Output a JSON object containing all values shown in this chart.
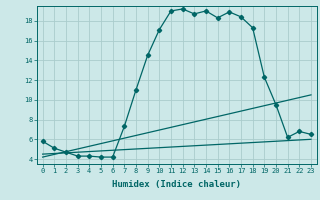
{
  "xlabel": "Humidex (Indice chaleur)",
  "bg_color": "#cce8e8",
  "grid_color": "#aacccc",
  "line_color": "#006666",
  "xlim": [
    -0.5,
    23.5
  ],
  "ylim": [
    3.5,
    19.5
  ],
  "xticks": [
    0,
    1,
    2,
    3,
    4,
    5,
    6,
    7,
    8,
    9,
    10,
    11,
    12,
    13,
    14,
    15,
    16,
    17,
    18,
    19,
    20,
    21,
    22,
    23
  ],
  "yticks": [
    4,
    6,
    8,
    10,
    12,
    14,
    16,
    18
  ],
  "line1_x": [
    0,
    1,
    2,
    3,
    4,
    5,
    6,
    7,
    8,
    9,
    10,
    11,
    12,
    13,
    14,
    15,
    16,
    17,
    18,
    19,
    20,
    21,
    22,
    23
  ],
  "line1_y": [
    5.8,
    5.1,
    4.7,
    4.3,
    4.3,
    4.2,
    4.2,
    7.3,
    11.0,
    14.5,
    17.1,
    19.0,
    19.2,
    18.7,
    19.0,
    18.3,
    18.9,
    18.4,
    17.3,
    12.3,
    9.5,
    6.2,
    6.8,
    6.5
  ],
  "line2_x": [
    0,
    23
  ],
  "line2_y": [
    4.5,
    6.0
  ],
  "line3_x": [
    0,
    23
  ],
  "line3_y": [
    4.2,
    10.5
  ],
  "marker": "D",
  "markersize": 2.2,
  "linewidth": 0.9,
  "tick_fontsize": 5.0,
  "xlabel_fontsize": 6.5
}
